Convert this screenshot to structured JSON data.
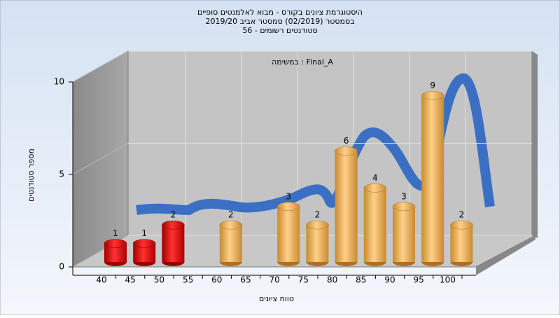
{
  "chart_data": {
    "type": "bar",
    "title": [
      "היסטוגרמת ציונים בקורס - מבוא לאלמנטים סופיים",
      "בסמסטר  (02/2019)  סמסטר אביב 2019/20",
      "סטודנטים רשומים - 56"
    ],
    "annotation": "במשימה : Final_A",
    "x_label": "טווח ציונים",
    "y_label": "מספר סטודנטים",
    "categories": [
      "40",
      "45",
      "50",
      "55",
      "60",
      "65",
      "70",
      "75",
      "80",
      "85",
      "90",
      "95",
      "100"
    ],
    "values": [
      1,
      1,
      2,
      0,
      2,
      0,
      3,
      2,
      6,
      4,
      3,
      9,
      2
    ],
    "colors": [
      "red",
      "red",
      "red",
      "orange",
      "orange",
      "orange",
      "orange",
      "orange",
      "orange",
      "orange",
      "orange",
      "orange",
      "orange"
    ],
    "ylim": [
      0,
      10
    ],
    "yticks": [
      0,
      5,
      10
    ],
    "grid": true
  }
}
